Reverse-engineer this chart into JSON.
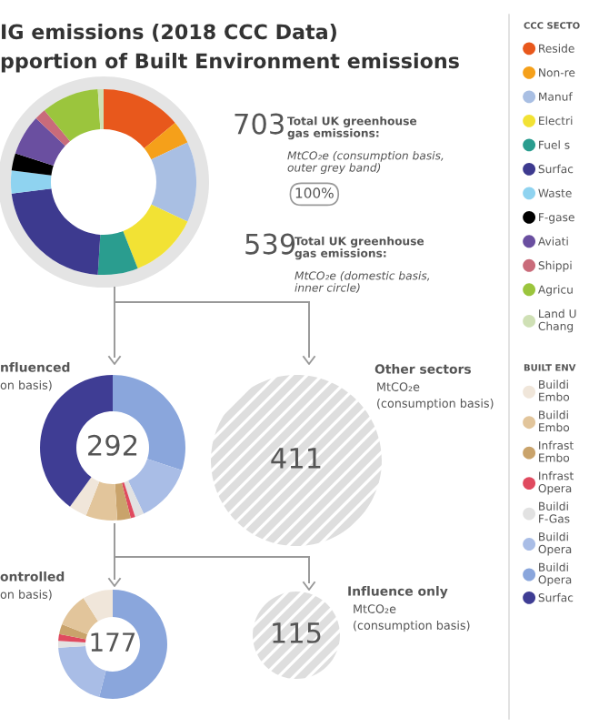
{
  "chart_data": [
    {
      "type": "donut",
      "title": "IG emissions (2018 CCC Data)",
      "subtitle": "pportion of Built Environment emissions",
      "categories": [
        "Reside",
        "Non-re",
        "Manuf",
        "Electri",
        "Fuel s",
        "Surfac",
        "Waste",
        "F-gase",
        "Aviati",
        "Shippi",
        "Agricu",
        "Land U\nChang"
      ],
      "values": [
        14,
        4,
        14,
        12,
        7,
        22,
        4,
        3,
        7,
        2,
        10,
        1
      ],
      "colors": [
        "#e8581c",
        "#f5a01a",
        "#a9bfe3",
        "#f2e234",
        "#2a9d8f",
        "#3d3a8f",
        "#8fd3f0",
        "#000000",
        "#6a4fa0",
        "#c96b7a",
        "#9bc53d",
        "#cfe0b5"
      ],
      "legend": "right",
      "legend_title": "CCC SECTO",
      "annotations": [
        "703",
        "Total UK greenhouse\ngas emissions:",
        "MtCO₂e (consumption basis,\nouter grey band)",
        "100%",
        "539",
        "Total UK greenhouse\ngas emissions:",
        "MtCO₂e (domestic basis,\ninner circle)"
      ]
    },
    {
      "type": "donut",
      "title": "nfluenced",
      "categories": [
        "Buildi\nOpera",
        "Buildi\nOpera",
        "Buildi\nF-Gas",
        "Infrast\nOpera",
        "Infrast\nEmbo",
        "Buildi\nEmbo",
        "Buildi\nEmbo",
        "Surfac"
      ],
      "values": [
        30,
        13,
        2,
        1,
        3,
        7,
        4,
        40
      ],
      "colors": [
        "#8aa6dc",
        "#a9bde6",
        "#e2e2e2",
        "#e04a5f",
        "#c9a36b",
        "#e2c59b",
        "#f0e6da",
        "#3f3d94"
      ],
      "legend": "right",
      "legend_title": "BUILT ENV",
      "annotations": [
        "on basis)",
        "292"
      ]
    },
    {
      "type": "other",
      "title": "Other sectors",
      "values": [
        411
      ],
      "data_labels": true,
      "annotations": [
        "MtCO₂e",
        "(consumption basis)"
      ]
    },
    {
      "type": "donut",
      "title": "ontrolled",
      "categories": [
        null,
        null,
        null,
        null,
        null,
        null,
        null
      ],
      "values": [
        54,
        20,
        2,
        2,
        3,
        10,
        9
      ],
      "colors": [
        "#8aa6dc",
        "#a9bde6",
        "#e2e2e2",
        "#e04a5f",
        "#c9a36b",
        "#e2c59b",
        "#f0e6da"
      ],
      "annotations": [
        "on basis)",
        "177"
      ]
    },
    {
      "type": "other",
      "title": "Influence only",
      "values": [
        115
      ],
      "data_labels": true,
      "annotations": [
        "MtCO₂e",
        "(consumption basis)"
      ]
    }
  ]
}
